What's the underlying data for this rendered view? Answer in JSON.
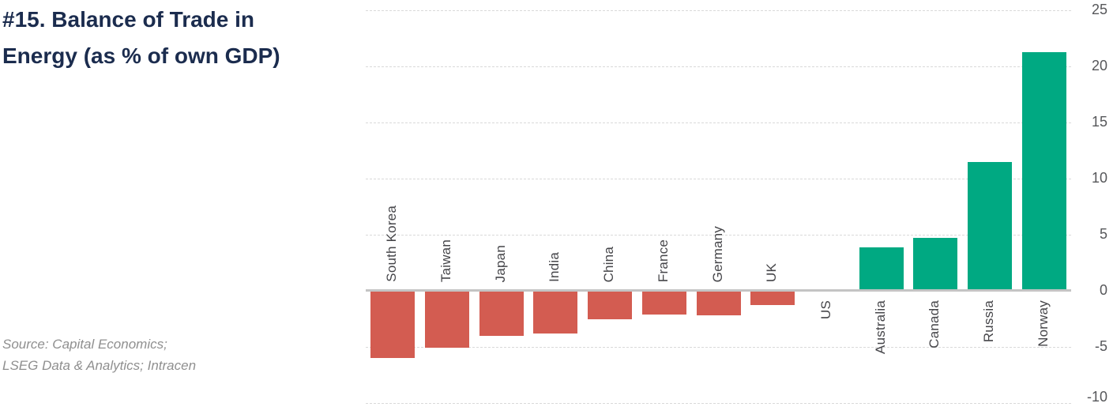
{
  "title": {
    "line1": "#15. Balance of Trade in",
    "line2": "Energy (as % of own GDP)"
  },
  "source": {
    "line1": "Source: Capital Economics;",
    "line2": "LSEG Data & Analytics; Intracen"
  },
  "chart_data": {
    "type": "bar",
    "title": "#15. Balance of Trade in Energy (as % of own GDP)",
    "categories": [
      "South Korea",
      "Taiwan",
      "Japan",
      "India",
      "China",
      "France",
      "Germany",
      "UK",
      "US",
      "Australia",
      "Canada",
      "Russia",
      "Norway"
    ],
    "values": [
      -6.0,
      -5.1,
      -4.0,
      -3.8,
      -2.5,
      -2.1,
      -2.2,
      -1.3,
      0.0,
      3.9,
      4.7,
      11.5,
      21.3
    ],
    "unit": "% of own GDP",
    "ylim": [
      -10,
      25
    ],
    "yticks": [
      25,
      20,
      15,
      10,
      5,
      0,
      -5,
      -10
    ],
    "grid": "horizontal-dashed",
    "legend": "none",
    "y_axis_side": "right",
    "colors": {
      "positive_bar": "#00a982",
      "negative_bar": "#d35c51",
      "title_text": "#1b2c4e",
      "axis_tick_text": "#56575a",
      "category_text": "#454549",
      "gridline": "#d9d9d9",
      "zero_line": "#c4c4c4",
      "source_text": "#8f8f8f"
    }
  }
}
